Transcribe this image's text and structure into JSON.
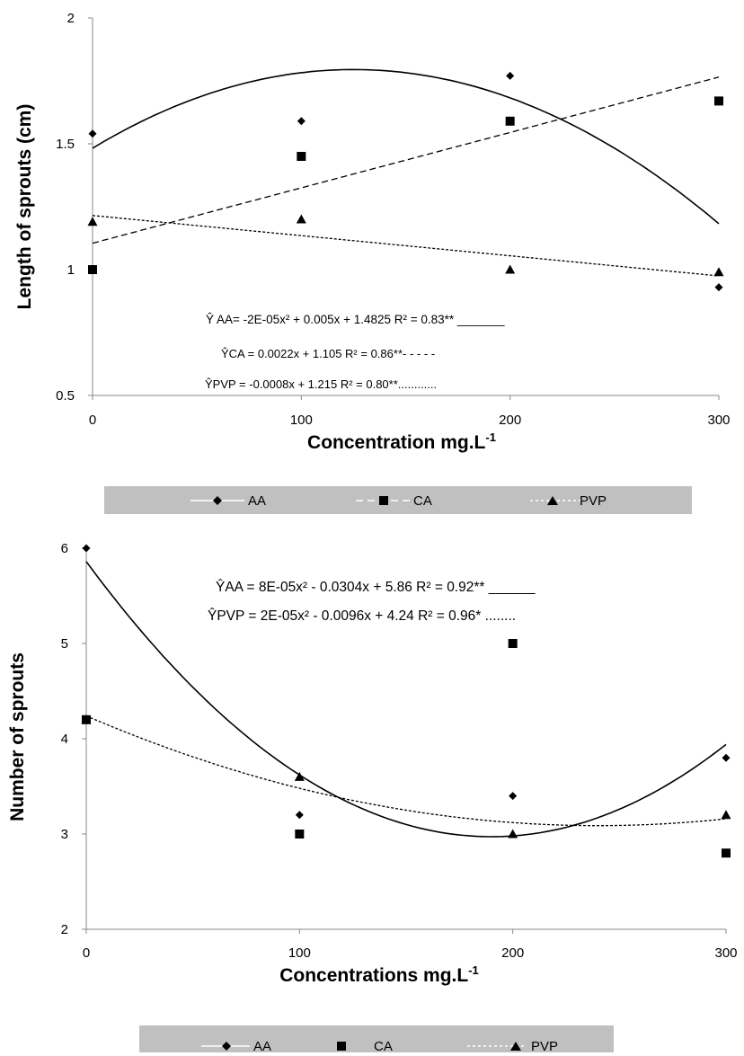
{
  "chart_data": [
    {
      "type": "scatter",
      "xlabel": "Concentration mg.L",
      "xlabel_sup": "-1",
      "ylabel": "Length of sprouts (cm)",
      "xlim": [
        0,
        300
      ],
      "ylim": [
        0.5,
        2
      ],
      "x_ticks": [
        "0",
        "100",
        "200",
        "300"
      ],
      "y_ticks": [
        "0.5",
        "1",
        "1.5",
        "2"
      ],
      "grid": false,
      "legend_position": "bottom",
      "x": [
        0,
        100,
        200,
        300
      ],
      "series": [
        {
          "name": "AA",
          "marker": "diamond",
          "values": [
            1.54,
            1.59,
            1.77,
            0.93
          ],
          "trend": {
            "kind": "quadratic",
            "coef": [
              -2e-05,
              0.005,
              1.4825
            ],
            "style": "solid"
          }
        },
        {
          "name": "CA",
          "marker": "square",
          "values": [
            1.0,
            1.45,
            1.59,
            1.67
          ],
          "trend": {
            "kind": "linear",
            "coef": [
              0.0022,
              1.105
            ],
            "style": "dashed"
          }
        },
        {
          "name": "PVP",
          "marker": "triangle",
          "values": [
            1.19,
            1.2,
            1.0,
            0.99
          ],
          "trend": {
            "kind": "linear",
            "coef": [
              -0.0008,
              1.215
            ],
            "style": "dotted"
          }
        }
      ],
      "equations": [
        "Ŷ AA= -2E-05x² + 0.005x + 1.4825 R² = 0.83** _______",
        "ŶCA = 0.0022x + 1.105 R² = 0.86**- - - - -",
        "ŶPVP = -0.0008x + 1.215 R² = 0.80**............"
      ],
      "legend": [
        "AA",
        "CA",
        "PVP"
      ]
    },
    {
      "type": "scatter",
      "xlabel": "Concentrations mg.L",
      "xlabel_sup": "-1",
      "ylabel": "Number of sprouts",
      "xlim": [
        0,
        300
      ],
      "ylim": [
        2,
        6
      ],
      "x_ticks": [
        "0",
        "100",
        "200",
        "300"
      ],
      "y_ticks": [
        "2",
        "3",
        "4",
        "5",
        "6"
      ],
      "grid": false,
      "legend_position": "bottom",
      "x": [
        0,
        100,
        200,
        300
      ],
      "series": [
        {
          "name": "AA",
          "marker": "diamond",
          "values": [
            6.0,
            3.2,
            3.4,
            3.8
          ],
          "trend": {
            "kind": "quadratic",
            "coef": [
              8e-05,
              -0.0304,
              5.86
            ],
            "style": "solid"
          }
        },
        {
          "name": "CA",
          "marker": "square",
          "values": [
            4.2,
            3.0,
            5.0,
            2.8
          ]
        },
        {
          "name": "PVP",
          "marker": "triangle",
          "values": [
            4.2,
            3.6,
            3.0,
            3.2
          ],
          "trend": {
            "kind": "quadratic",
            "coef": [
              2e-05,
              -0.0096,
              4.24
            ],
            "style": "dotted"
          }
        }
      ],
      "equations": [
        "ŶAA = 8E-05x² - 0.0304x + 5.86 R² = 0.92** ______",
        "ŶPVP = 2E-05x² - 0.0096x + 4.24 R² = 0.96* ........"
      ],
      "legend": [
        "AA",
        "CA",
        "PVP"
      ]
    }
  ]
}
